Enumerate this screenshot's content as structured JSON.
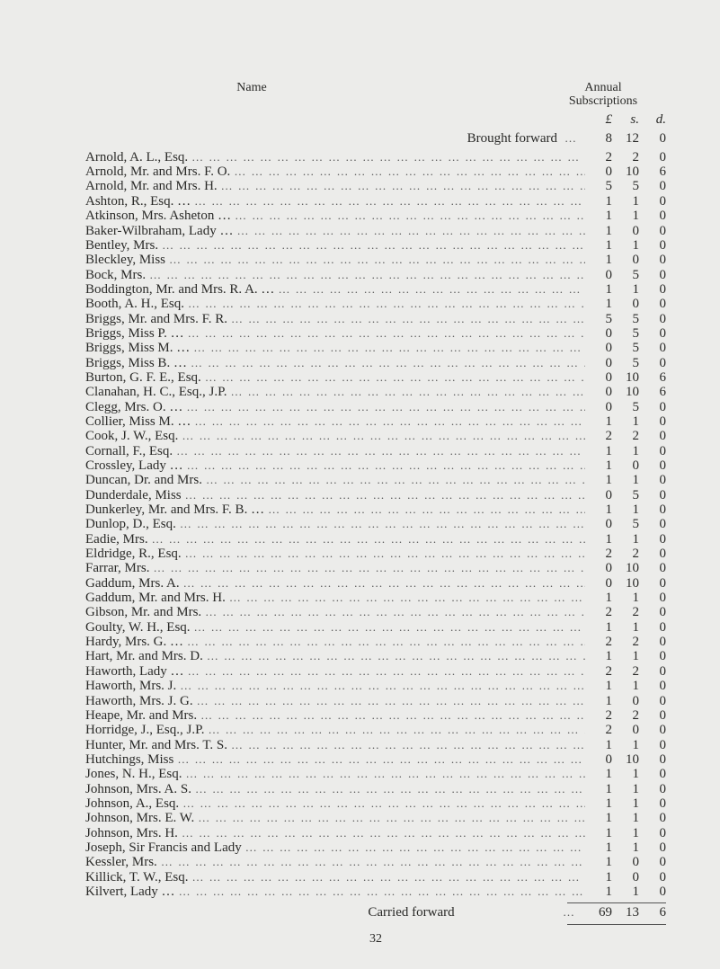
{
  "header": {
    "name_label": "Name",
    "subs_label_1": "Annual",
    "subs_label_2": "Subscriptions"
  },
  "currency": {
    "l": "£",
    "s": "s.",
    "d": "d."
  },
  "brought_forward": {
    "label": "Brought forward",
    "l": "8",
    "s": "12",
    "d": "0"
  },
  "rows": [
    {
      "name": "Arnold, A. L., Esq.",
      "l": "2",
      "s": "2",
      "d": "0"
    },
    {
      "name": "Arnold, Mr. and Mrs. F. O.",
      "l": "0",
      "s": "10",
      "d": "6"
    },
    {
      "name": "Arnold, Mr. and Mrs. H.",
      "l": "5",
      "s": "5",
      "d": "0"
    },
    {
      "name": "Ashton, R., Esq. …",
      "l": "1",
      "s": "1",
      "d": "0"
    },
    {
      "name": "Atkinson, Mrs. Asheton …",
      "l": "1",
      "s": "1",
      "d": "0"
    },
    {
      "name": "Baker-Wilbraham, Lady …",
      "l": "1",
      "s": "0",
      "d": "0"
    },
    {
      "name": "Bentley, Mrs.",
      "l": "1",
      "s": "1",
      "d": "0"
    },
    {
      "name": "Bleckley, Miss",
      "l": "1",
      "s": "0",
      "d": "0"
    },
    {
      "name": "Bock, Mrs.",
      "l": "0",
      "s": "5",
      "d": "0"
    },
    {
      "name": "Boddington, Mr. and Mrs. R. A. …",
      "l": "1",
      "s": "1",
      "d": "0"
    },
    {
      "name": "Booth, A. H., Esq.",
      "l": "1",
      "s": "0",
      "d": "0"
    },
    {
      "name": "Briggs, Mr. and Mrs. F. R.",
      "l": "5",
      "s": "5",
      "d": "0"
    },
    {
      "name": "Briggs, Miss P. …",
      "l": "0",
      "s": "5",
      "d": "0"
    },
    {
      "name": "Briggs, Miss M. …",
      "l": "0",
      "s": "5",
      "d": "0"
    },
    {
      "name": "Briggs, Miss B. …",
      "l": "0",
      "s": "5",
      "d": "0"
    },
    {
      "name": "Burton, G. F. E., Esq.",
      "l": "0",
      "s": "10",
      "d": "6"
    },
    {
      "name": "Clanahan, H. C., Esq., J.P.",
      "l": "0",
      "s": "10",
      "d": "6"
    },
    {
      "name": "Clegg, Mrs. O.  …",
      "l": "0",
      "s": "5",
      "d": "0"
    },
    {
      "name": "Collier, Miss M. …",
      "l": "1",
      "s": "1",
      "d": "0"
    },
    {
      "name": "Cook, J. W., Esq.",
      "l": "2",
      "s": "2",
      "d": "0"
    },
    {
      "name": "Cornall, F., Esq.",
      "l": "1",
      "s": "1",
      "d": "0"
    },
    {
      "name": "Crossley, Lady  …",
      "l": "1",
      "s": "0",
      "d": "0"
    },
    {
      "name": "Duncan, Dr. and Mrs.",
      "l": "1",
      "s": "1",
      "d": "0"
    },
    {
      "name": "Dunderdale, Miss",
      "l": "0",
      "s": "5",
      "d": "0"
    },
    {
      "name": "Dunkerley, Mr. and Mrs. F. B. …",
      "l": "1",
      "s": "1",
      "d": "0"
    },
    {
      "name": "Dunlop, D., Esq.",
      "l": "0",
      "s": "5",
      "d": "0"
    },
    {
      "name": "Eadie, Mrs.",
      "l": "1",
      "s": "1",
      "d": "0"
    },
    {
      "name": "Eldridge, R., Esq.",
      "l": "2",
      "s": "2",
      "d": "0"
    },
    {
      "name": "Farrar, Mrs.",
      "l": "0",
      "s": "10",
      "d": "0"
    },
    {
      "name": "Gaddum, Mrs. A.",
      "l": "0",
      "s": "10",
      "d": "0"
    },
    {
      "name": "Gaddum, Mr. and Mrs. H.",
      "l": "1",
      "s": "1",
      "d": "0"
    },
    {
      "name": "Gibson, Mr. and Mrs.",
      "l": "2",
      "s": "2",
      "d": "0"
    },
    {
      "name": "Goulty, W. H., Esq.",
      "l": "1",
      "s": "1",
      "d": "0"
    },
    {
      "name": "Hardy, Mrs. G. …",
      "l": "2",
      "s": "2",
      "d": "0"
    },
    {
      "name": "Hart, Mr. and Mrs. D.",
      "l": "1",
      "s": "1",
      "d": "0"
    },
    {
      "name": "Haworth, Lady  …",
      "l": "2",
      "s": "2",
      "d": "0"
    },
    {
      "name": "Haworth, Mrs. J.",
      "l": "1",
      "s": "1",
      "d": "0"
    },
    {
      "name": "Haworth, Mrs. J. G.",
      "l": "1",
      "s": "0",
      "d": "0"
    },
    {
      "name": "Heape, Mr. and Mrs.",
      "l": "2",
      "s": "2",
      "d": "0"
    },
    {
      "name": "Horridge, J., Esq., J.P.",
      "l": "2",
      "s": "0",
      "d": "0"
    },
    {
      "name": "Hunter, Mr. and Mrs. T. S.",
      "l": "1",
      "s": "1",
      "d": "0"
    },
    {
      "name": "Hutchings, Miss",
      "l": "0",
      "s": "10",
      "d": "0"
    },
    {
      "name": "Jones, N. H., Esq.",
      "l": "1",
      "s": "1",
      "d": "0"
    },
    {
      "name": "Johnson, Mrs. A. S.",
      "l": "1",
      "s": "1",
      "d": "0"
    },
    {
      "name": "Johnson, A., Esq.",
      "l": "1",
      "s": "1",
      "d": "0"
    },
    {
      "name": "Johnson, Mrs. E. W.",
      "l": "1",
      "s": "1",
      "d": "0"
    },
    {
      "name": "Johnson, Mrs. H.",
      "l": "1",
      "s": "1",
      "d": "0"
    },
    {
      "name": "Joseph, Sir Francis and Lady",
      "l": "1",
      "s": "1",
      "d": "0"
    },
    {
      "name": "Kessler, Mrs.",
      "l": "1",
      "s": "0",
      "d": "0"
    },
    {
      "name": "Killick, T. W., Esq.",
      "l": "1",
      "s": "0",
      "d": "0"
    },
    {
      "name": "Kilvert, Lady  …",
      "l": "1",
      "s": "1",
      "d": "0"
    }
  ],
  "carried_forward": {
    "label": "Carried forward",
    "l": "69",
    "s": "13",
    "d": "6"
  },
  "page_number": "32"
}
